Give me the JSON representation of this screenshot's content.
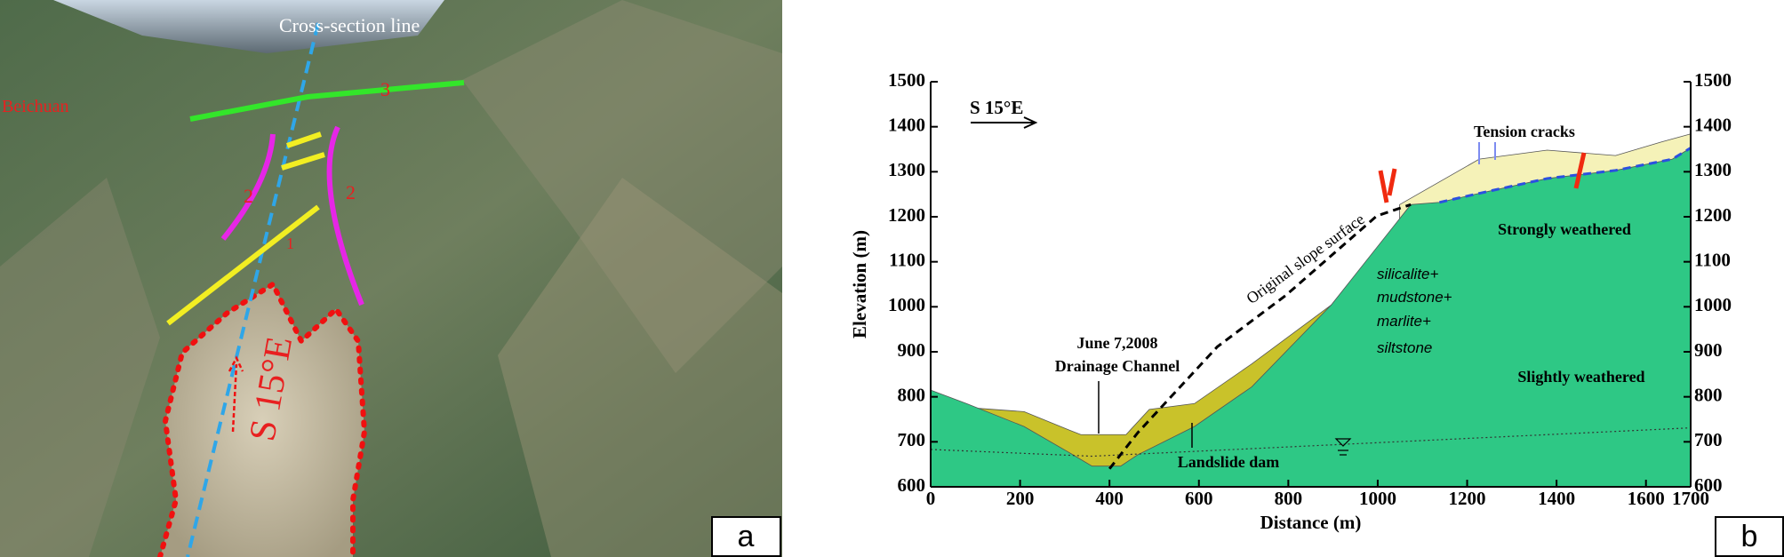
{
  "panel_a": {
    "label": "a",
    "cross_section_label": "Cross-section line",
    "town": "Beichuan",
    "zone_labels": [
      "1",
      "2",
      "2",
      "3"
    ],
    "direction": "S 15°E"
  },
  "chart_data": {
    "type": "area",
    "label": "b",
    "direction": "S 15°E",
    "xlabel": "Distance (m)",
    "ylabel": "Elevation (m)",
    "xlim": [
      0,
      1700
    ],
    "ylim": [
      600,
      1500
    ],
    "xticks": [
      0,
      200,
      400,
      600,
      800,
      1000,
      1200,
      1400,
      1600,
      1700
    ],
    "yticks": [
      600,
      700,
      800,
      900,
      1000,
      1100,
      1200,
      1300,
      1400,
      1500
    ],
    "y2lim": [
      600,
      1500
    ],
    "y2ticks": [
      600,
      700,
      800,
      900,
      1000,
      1100,
      1200,
      1300,
      1400,
      1500
    ],
    "areas": [
      {
        "color": "#f5f2b8",
        "x": [
          1049,
          1227,
          1379,
          1532,
          1634,
          1700
        ],
        "values": [
          1227,
          1328,
          1348,
          1336,
          1366,
          1384
        ]
      },
      {
        "color": "#c9c22a",
        "x": [
          70,
          209,
          310,
          336,
          437,
          489,
          590,
          718,
          896
        ],
        "values": [
          777,
          767,
          726,
          716,
          716,
          772,
          785,
          873,
          1004
        ]
      },
      {
        "color": "#2ec885",
        "x": [
          0,
          80,
          209,
          310,
          361,
          425,
          463,
          590,
          718,
          896,
          1074,
          1138,
          1227,
          1379,
          1532,
          1659,
          1700
        ],
        "values": [
          815,
          785,
          734,
          676,
          646,
          646,
          671,
          734,
          822,
          1004,
          1227,
          1232,
          1252,
          1285,
          1303,
          1328,
          1353
        ]
      }
    ],
    "lines": [
      {
        "color": "#000000",
        "style": "dashed",
        "x": [
          400,
          463,
          641,
          794,
          998,
          1074
        ],
        "values": [
          640,
          720,
          911,
          1025,
          1202,
          1227
        ]
      },
      {
        "color": "#333333",
        "style": "dotted",
        "x": [
          0,
          361,
          1700
        ],
        "values": [
          683,
          668,
          731
        ]
      },
      {
        "color": "#2b50e0",
        "style": "dashed",
        "x": [
          1138,
          1227,
          1379,
          1532,
          1659,
          1700
        ],
        "values": [
          1232,
          1252,
          1285,
          1303,
          1328,
          1353
        ]
      }
    ],
    "annotations": {
      "cracks": "Tension cracks",
      "strong": "Strongly weathered",
      "slight": "Slightly weathered",
      "original": "Original slope surface",
      "rock": [
        "silicalite+",
        "mudstone+",
        "marlite+",
        "siltstone"
      ],
      "date": "June 7,2008",
      "channel": "Drainage Channel",
      "dam": "Landslide dam"
    }
  }
}
